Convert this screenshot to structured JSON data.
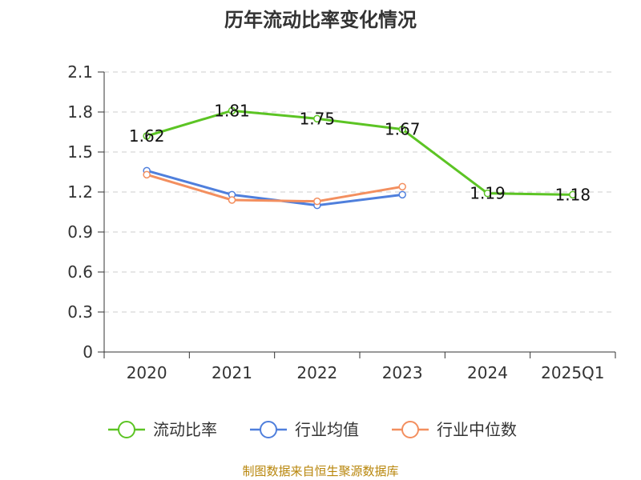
{
  "chart_data": {
    "type": "line",
    "title": "历年流动比率变化情况",
    "categories": [
      "2020",
      "2021",
      "2022",
      "2023",
      "2024",
      "2025Q1"
    ],
    "ylim": [
      0,
      2.1
    ],
    "yticks": [
      "0",
      "0.3",
      "0.6",
      "0.9",
      "1.2",
      "1.5",
      "1.8",
      "2.1"
    ],
    "grid": true,
    "legend_position": "bottom",
    "series": [
      {
        "name": "流动比率",
        "color": "#5cc424",
        "values": [
          1.62,
          1.81,
          1.75,
          1.67,
          1.19,
          1.18
        ],
        "labels": [
          "1.62",
          "1.81",
          "1.75",
          "1.67",
          "1.19",
          "1.18"
        ]
      },
      {
        "name": "行业均值",
        "color": "#4f7fdc",
        "values": [
          1.36,
          1.18,
          1.1,
          1.18,
          null,
          null
        ]
      },
      {
        "name": "行业中位数",
        "color": "#f38f5f",
        "values": [
          1.33,
          1.14,
          1.13,
          1.24,
          null,
          null
        ]
      }
    ],
    "source": "制图数据来自恒生聚源数据库"
  }
}
